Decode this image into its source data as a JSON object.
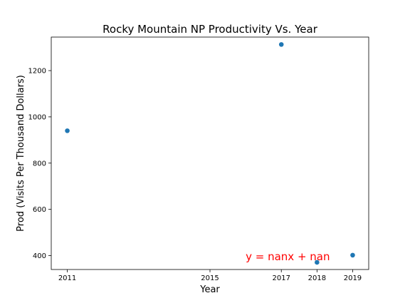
{
  "chart_data": {
    "type": "scatter",
    "title": "Rocky Mountain NP Productivity Vs. Year",
    "xlabel": "Year",
    "ylabel": "Prod (Visits Per Thousand Dollars)",
    "xlim": [
      2010.55,
      2019.45
    ],
    "ylim": [
      340,
      1345
    ],
    "x_ticks": [
      2011,
      2015,
      2017,
      2018,
      2019
    ],
    "y_ticks": [
      400,
      600,
      800,
      1000,
      1200
    ],
    "grid": false,
    "series": [
      {
        "color": "#1f77b4",
        "points": [
          {
            "x": 2011,
            "y": 940
          },
          {
            "x": 2017,
            "y": 1313
          },
          {
            "x": 2018,
            "y": 371
          },
          {
            "x": 2019,
            "y": 402
          }
        ]
      }
    ],
    "annotation": {
      "text": "y = nanx + nan",
      "color": "#ff0000",
      "x": 2016.0,
      "y": 380
    }
  }
}
